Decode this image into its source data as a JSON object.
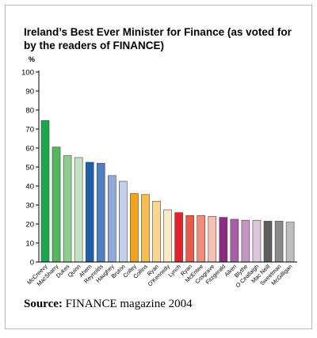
{
  "title": "Ireland’s Best Ever Minister for Finance (as voted for by the readers of FINANCE)",
  "source": {
    "label": "Source:",
    "text": "FINANCE magazine 2004"
  },
  "chart_data": {
    "type": "bar",
    "title": "Ireland’s Best Ever Minister for Finance (as voted for by the readers of FINANCE)",
    "ylabel": "%",
    "xlabel": "",
    "ylim": [
      0,
      100
    ],
    "yticks": [
      0,
      10,
      20,
      30,
      40,
      50,
      60,
      70,
      80,
      90,
      100
    ],
    "grid": false,
    "legend": "none",
    "categories": [
      "McCreevy",
      "MacSharry",
      "Dukes",
      "Quinn",
      "Ahern",
      "Reynolds",
      "Haughey",
      "Bruton",
      "Colley",
      "Collins",
      "Ryan",
      "O'Kennedy",
      "Lynch",
      "Ryan",
      "McEntee",
      "Cosgrave",
      "Fitzgerald",
      "Aiken",
      "Blythe",
      "O Ceallaigh",
      "Mac Neill",
      "Sweetman",
      "McGilligan"
    ],
    "values": [
      74.5,
      60.5,
      56,
      55,
      52.5,
      52,
      45.5,
      42.5,
      36,
      35.5,
      32,
      27.5,
      26,
      24.5,
      24.5,
      24,
      23.5,
      22.5,
      22,
      22,
      21.5,
      21.5,
      21
    ],
    "colors": [
      "#1aa64a",
      "#52b85c",
      "#8dcd8e",
      "#c2e2c2",
      "#1f5fa8",
      "#4e7fc0",
      "#8fa8d8",
      "#c2cfe8",
      "#f1a41a",
      "#f5bc52",
      "#f8d690",
      "#fbeac8",
      "#e2232a",
      "#ea5a48",
      "#f08c78",
      "#f6c0b2",
      "#8c2d84",
      "#a85ea4",
      "#c394c1",
      "#ddc3dc",
      "#5e5e5e",
      "#8a8a8a",
      "#bdbdbd"
    ]
  }
}
